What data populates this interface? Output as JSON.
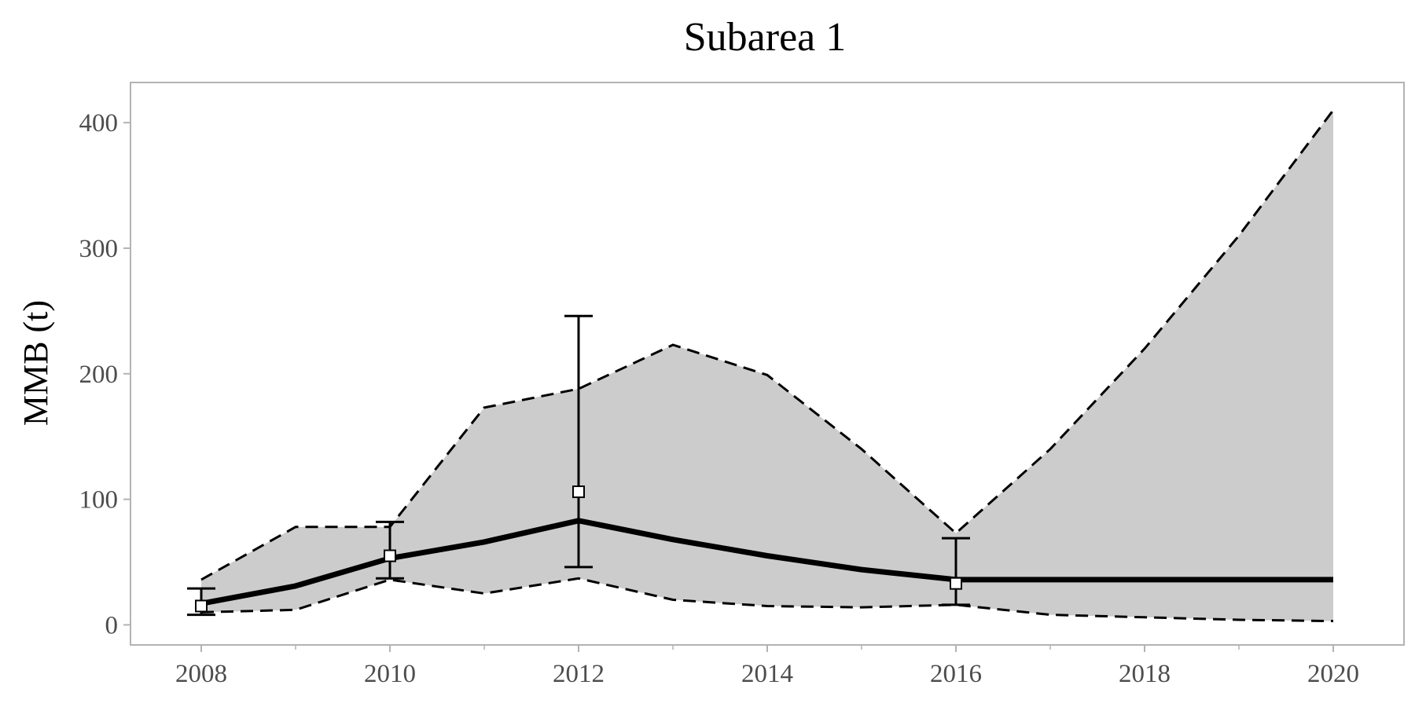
{
  "chart_data": {
    "type": "line",
    "title": "Subarea 1",
    "xlabel": "",
    "ylabel": "MMB (t)",
    "xlim": [
      2007.25,
      2020.75
    ],
    "ylim": [
      -16,
      432
    ],
    "x_ticks": [
      2008,
      2010,
      2012,
      2014,
      2016,
      2018,
      2020
    ],
    "x_minor_ticks": [
      2009,
      2011,
      2013,
      2015,
      2017,
      2019
    ],
    "y_ticks": [
      0,
      100,
      200,
      300,
      400
    ],
    "grid": false,
    "legend": "none",
    "x": [
      2008,
      2009,
      2010,
      2011,
      2012,
      2013,
      2014,
      2015,
      2016,
      2017,
      2018,
      2019,
      2020
    ],
    "series": [
      {
        "values": [
          17,
          31,
          53,
          66,
          83,
          68,
          55,
          44,
          36,
          36,
          36,
          36,
          36
        ]
      },
      {
        "values": [
          36,
          78,
          78,
          173,
          188,
          223,
          199,
          140,
          73,
          140,
          220,
          310,
          410
        ]
      },
      {
        "values": [
          10,
          12,
          36,
          25,
          37,
          20,
          15,
          14,
          16,
          8,
          6,
          4,
          3
        ]
      }
    ],
    "observations": {
      "x": [
        2008,
        2010,
        2012,
        2016
      ],
      "values": [
        15,
        55,
        106,
        33
      ],
      "lower": [
        8,
        37,
        46,
        16
      ],
      "upper": [
        29,
        82,
        246,
        69
      ]
    },
    "colors": {
      "band_fill": "#cccccc",
      "line": "#000000",
      "axis": "#b3b3b3",
      "tick_text": "#4d4d4d",
      "marker_fill": "#ffffff"
    }
  }
}
